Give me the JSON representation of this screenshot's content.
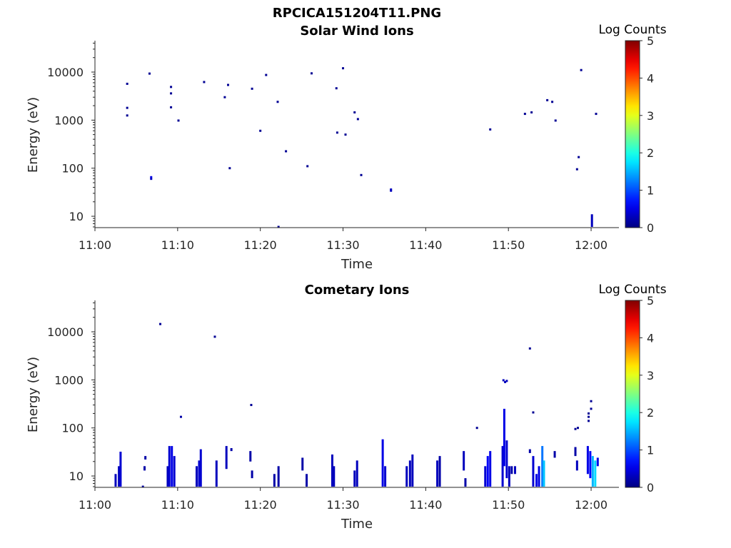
{
  "figure": {
    "title": "RPCICA151204T11.PNG"
  },
  "colors": {
    "axes": "#262626",
    "background": "#ffffff",
    "colormap": "jet"
  },
  "chart_data": [
    {
      "type": "heatmap",
      "title": "Solar Wind Ions",
      "xlabel": "Time",
      "ylabel": "Energy (eV)",
      "x_ticks": [
        "11:00",
        "11:10",
        "11:20",
        "11:30",
        "11:40",
        "11:50",
        "12:00"
      ],
      "y_ticks": [
        "10",
        "100",
        "1000",
        "10000"
      ],
      "y_scale": "log",
      "xlim_min": [
        0,
        62.5
      ],
      "ylim": [
        5.8,
        45000
      ],
      "colorbar": {
        "label": "Log Counts",
        "range": [
          0,
          5
        ],
        "ticks": [
          "0",
          "1",
          "2",
          "3",
          "4",
          "5"
        ]
      },
      "points": [
        {
          "t": 3.9,
          "e": 5700,
          "c": 0.1
        },
        {
          "t": 3.9,
          "e": 1800,
          "c": 0.1
        },
        {
          "t": 3.9,
          "e": 1250,
          "c": 0.1
        },
        {
          "t": 6.6,
          "e": 9300,
          "c": 0.1
        },
        {
          "t": 6.8,
          "e": 65,
          "c": 0.5
        },
        {
          "t": 6.8,
          "e": 60,
          "c": 0.3
        },
        {
          "t": 9.2,
          "e": 4900,
          "c": 0.1
        },
        {
          "t": 9.2,
          "e": 3600,
          "c": 0.1
        },
        {
          "t": 9.2,
          "e": 1850,
          "c": 0.1
        },
        {
          "t": 10.1,
          "e": 980,
          "c": 0.1
        },
        {
          "t": 13.2,
          "e": 6200,
          "c": 0.1
        },
        {
          "t": 15.7,
          "e": 3000,
          "c": 0.1
        },
        {
          "t": 16.1,
          "e": 5400,
          "c": 0.1
        },
        {
          "t": 16.3,
          "e": 100,
          "c": 0.1
        },
        {
          "t": 19.0,
          "e": 4500,
          "c": 0.1
        },
        {
          "t": 20.0,
          "e": 600,
          "c": 0.1
        },
        {
          "t": 20.7,
          "e": 8700,
          "c": 0.1
        },
        {
          "t": 22.1,
          "e": 2400,
          "c": 0.1
        },
        {
          "t": 22.2,
          "e": 6,
          "c": 0.1
        },
        {
          "t": 23.1,
          "e": 225,
          "c": 0.1
        },
        {
          "t": 25.7,
          "e": 110,
          "c": 0.1
        },
        {
          "t": 26.2,
          "e": 9400,
          "c": 0.1
        },
        {
          "t": 29.2,
          "e": 4600,
          "c": 0.1
        },
        {
          "t": 29.3,
          "e": 550,
          "c": 0.1
        },
        {
          "t": 30.0,
          "e": 12000,
          "c": 0.1
        },
        {
          "t": 30.3,
          "e": 500,
          "c": 0.1
        },
        {
          "t": 31.4,
          "e": 1450,
          "c": 0.1
        },
        {
          "t": 31.8,
          "e": 1050,
          "c": 0.1
        },
        {
          "t": 32.2,
          "e": 72,
          "c": 0.1
        },
        {
          "t": 35.8,
          "e": 36,
          "c": 0.3
        },
        {
          "t": 35.8,
          "e": 34,
          "c": 0.3
        },
        {
          "t": 47.8,
          "e": 640,
          "c": 0.1
        },
        {
          "t": 52.0,
          "e": 1350,
          "c": 0.1
        },
        {
          "t": 52.8,
          "e": 1450,
          "c": 0.1
        },
        {
          "t": 54.7,
          "e": 2600,
          "c": 0.1
        },
        {
          "t": 55.3,
          "e": 2400,
          "c": 0.1
        },
        {
          "t": 55.7,
          "e": 980,
          "c": 0.1
        },
        {
          "t": 58.3,
          "e": 95,
          "c": 0.1
        },
        {
          "t": 58.5,
          "e": 170,
          "c": 0.1
        },
        {
          "t": 58.8,
          "e": 11000,
          "c": 0.1
        },
        {
          "t": 60.6,
          "e": 1350,
          "c": 0.1
        }
      ],
      "bars": [
        {
          "t": 60.1,
          "e_lo": 6,
          "e_hi": 11,
          "c": 0.3
        }
      ]
    },
    {
      "type": "heatmap",
      "title": "Cometary Ions",
      "xlabel": "Time",
      "ylabel": "Energy (eV)",
      "x_ticks": [
        "11:00",
        "11:10",
        "11:20",
        "11:30",
        "11:40",
        "11:50",
        "12:00"
      ],
      "y_ticks": [
        "10",
        "100",
        "1000",
        "10000"
      ],
      "y_scale": "log",
      "xlim_min": [
        0,
        62.5
      ],
      "ylim": [
        5.8,
        45000
      ],
      "colorbar": {
        "label": "Log Counts",
        "range": [
          0,
          5
        ],
        "ticks": [
          "0",
          "1",
          "2",
          "3",
          "4",
          "5"
        ]
      },
      "points": [
        {
          "t": 7.9,
          "e": 14500,
          "c": 0.1
        },
        {
          "t": 14.5,
          "e": 7900,
          "c": 0.1
        },
        {
          "t": 10.4,
          "e": 170,
          "c": 0.2
        },
        {
          "t": 18.9,
          "e": 300,
          "c": 0.1
        },
        {
          "t": 46.2,
          "e": 100,
          "c": 0.1
        },
        {
          "t": 52.6,
          "e": 4500,
          "c": 0.1
        },
        {
          "t": 53.0,
          "e": 210,
          "c": 0.1
        },
        {
          "t": 58.1,
          "e": 95,
          "c": 0.1
        },
        {
          "t": 58.4,
          "e": 100,
          "c": 0.1
        },
        {
          "t": 60.0,
          "e": 360,
          "c": 0.1
        },
        {
          "t": 60.0,
          "e": 250,
          "c": 0.1
        },
        {
          "t": 59.7,
          "e": 200,
          "c": 0.1
        },
        {
          "t": 59.7,
          "e": 170,
          "c": 0.1
        },
        {
          "t": 59.7,
          "e": 140,
          "c": 0.1
        },
        {
          "t": 49.4,
          "e": 980,
          "c": 0.3
        },
        {
          "t": 49.6,
          "e": 900,
          "c": 0.3
        },
        {
          "t": 49.8,
          "e": 950,
          "c": 0.3
        }
      ],
      "bars": [
        {
          "t": 2.5,
          "e_lo": 6,
          "e_hi": 11,
          "c": 0.3
        },
        {
          "t": 2.9,
          "e_lo": 6,
          "e_hi": 16,
          "c": 0.3
        },
        {
          "t": 3.1,
          "e_lo": 6,
          "e_hi": 32,
          "c": 0.4
        },
        {
          "t": 5.8,
          "e_lo": 6,
          "e_hi": 6.3,
          "c": 0.2
        },
        {
          "t": 6.0,
          "e_lo": 13,
          "e_hi": 16,
          "c": 0.2
        },
        {
          "t": 6.1,
          "e_lo": 22,
          "e_hi": 26,
          "c": 0.2
        },
        {
          "t": 8.8,
          "e_lo": 6,
          "e_hi": 16,
          "c": 0.3
        },
        {
          "t": 9.0,
          "e_lo": 6,
          "e_hi": 42,
          "c": 0.4
        },
        {
          "t": 9.3,
          "e_lo": 6,
          "e_hi": 42,
          "c": 0.5
        },
        {
          "t": 9.6,
          "e_lo": 6,
          "e_hi": 26,
          "c": 0.4
        },
        {
          "t": 12.3,
          "e_lo": 6,
          "e_hi": 16,
          "c": 0.3
        },
        {
          "t": 12.6,
          "e_lo": 6,
          "e_hi": 21,
          "c": 0.4
        },
        {
          "t": 12.8,
          "e_lo": 6,
          "e_hi": 36,
          "c": 0.4
        },
        {
          "t": 14.7,
          "e_lo": 6,
          "e_hi": 21,
          "c": 0.3
        },
        {
          "t": 15.9,
          "e_lo": 14,
          "e_hi": 42,
          "c": 0.3
        },
        {
          "t": 16.5,
          "e_lo": 33,
          "e_hi": 38,
          "c": 0.2
        },
        {
          "t": 18.8,
          "e_lo": 20,
          "e_hi": 33,
          "c": 0.2
        },
        {
          "t": 19.0,
          "e_lo": 9,
          "e_hi": 13,
          "c": 0.2
        },
        {
          "t": 21.7,
          "e_lo": 6,
          "e_hi": 11,
          "c": 0.2
        },
        {
          "t": 22.2,
          "e_lo": 6,
          "e_hi": 16,
          "c": 0.2
        },
        {
          "t": 25.1,
          "e_lo": 13,
          "e_hi": 24,
          "c": 0.2
        },
        {
          "t": 25.6,
          "e_lo": 6,
          "e_hi": 11,
          "c": 0.2
        },
        {
          "t": 28.7,
          "e_lo": 6,
          "e_hi": 28,
          "c": 0.3
        },
        {
          "t": 28.9,
          "e_lo": 6,
          "e_hi": 16,
          "c": 0.3
        },
        {
          "t": 31.4,
          "e_lo": 6,
          "e_hi": 13,
          "c": 0.3
        },
        {
          "t": 31.7,
          "e_lo": 6,
          "e_hi": 21,
          "c": 0.3
        },
        {
          "t": 34.8,
          "e_lo": 6,
          "e_hi": 58,
          "c": 0.5
        },
        {
          "t": 35.1,
          "e_lo": 6,
          "e_hi": 16,
          "c": 0.4
        },
        {
          "t": 37.7,
          "e_lo": 6,
          "e_hi": 16,
          "c": 0.3
        },
        {
          "t": 38.1,
          "e_lo": 6,
          "e_hi": 21,
          "c": 0.3
        },
        {
          "t": 38.4,
          "e_lo": 6,
          "e_hi": 28,
          "c": 0.3
        },
        {
          "t": 41.4,
          "e_lo": 6,
          "e_hi": 21,
          "c": 0.3
        },
        {
          "t": 41.7,
          "e_lo": 6,
          "e_hi": 26,
          "c": 0.2
        },
        {
          "t": 44.6,
          "e_lo": 13,
          "e_hi": 33,
          "c": 0.3
        },
        {
          "t": 44.8,
          "e_lo": 6,
          "e_hi": 9,
          "c": 0.2
        },
        {
          "t": 47.2,
          "e_lo": 6,
          "e_hi": 16,
          "c": 0.4
        },
        {
          "t": 47.5,
          "e_lo": 6,
          "e_hi": 26,
          "c": 0.6
        },
        {
          "t": 47.8,
          "e_lo": 6,
          "e_hi": 33,
          "c": 0.5
        },
        {
          "t": 49.3,
          "e_lo": 6,
          "e_hi": 42,
          "c": 0.4
        },
        {
          "t": 49.5,
          "e_lo": 16,
          "e_hi": 250,
          "c": 0.5
        },
        {
          "t": 49.8,
          "e_lo": 9,
          "e_hi": 55,
          "c": 0.4
        },
        {
          "t": 50.1,
          "e_lo": 6,
          "e_hi": 16,
          "c": 0.3
        },
        {
          "t": 50.4,
          "e_lo": 11,
          "e_hi": 16,
          "c": 0.2
        },
        {
          "t": 50.8,
          "e_lo": 11,
          "e_hi": 16,
          "c": 0.3
        },
        {
          "t": 52.6,
          "e_lo": 30,
          "e_hi": 36,
          "c": 0.2
        },
        {
          "t": 53.0,
          "e_lo": 6,
          "e_hi": 26,
          "c": 0.4
        },
        {
          "t": 53.4,
          "e_lo": 6,
          "e_hi": 11,
          "c": 0.5
        },
        {
          "t": 53.7,
          "e_lo": 6,
          "e_hi": 16,
          "c": 0.5
        },
        {
          "t": 54.1,
          "e_lo": 6,
          "e_hi": 42,
          "c": 1.2
        },
        {
          "t": 54.3,
          "e_lo": 6,
          "e_hi": 21,
          "c": 1.6
        },
        {
          "t": 55.6,
          "e_lo": 24,
          "e_hi": 33,
          "c": 0.2
        },
        {
          "t": 58.1,
          "e_lo": 26,
          "e_hi": 40,
          "c": 0.2
        },
        {
          "t": 58.3,
          "e_lo": 13,
          "e_hi": 21,
          "c": 0.3
        },
        {
          "t": 59.6,
          "e_lo": 11,
          "e_hi": 42,
          "c": 0.5
        },
        {
          "t": 59.9,
          "e_lo": 9,
          "e_hi": 33,
          "c": 0.6
        },
        {
          "t": 60.2,
          "e_lo": 6,
          "e_hi": 26,
          "c": 1.5
        },
        {
          "t": 60.5,
          "e_lo": 6,
          "e_hi": 21,
          "c": 1.7
        },
        {
          "t": 60.8,
          "e_lo": 16,
          "e_hi": 24,
          "c": 0.5
        }
      ]
    }
  ]
}
